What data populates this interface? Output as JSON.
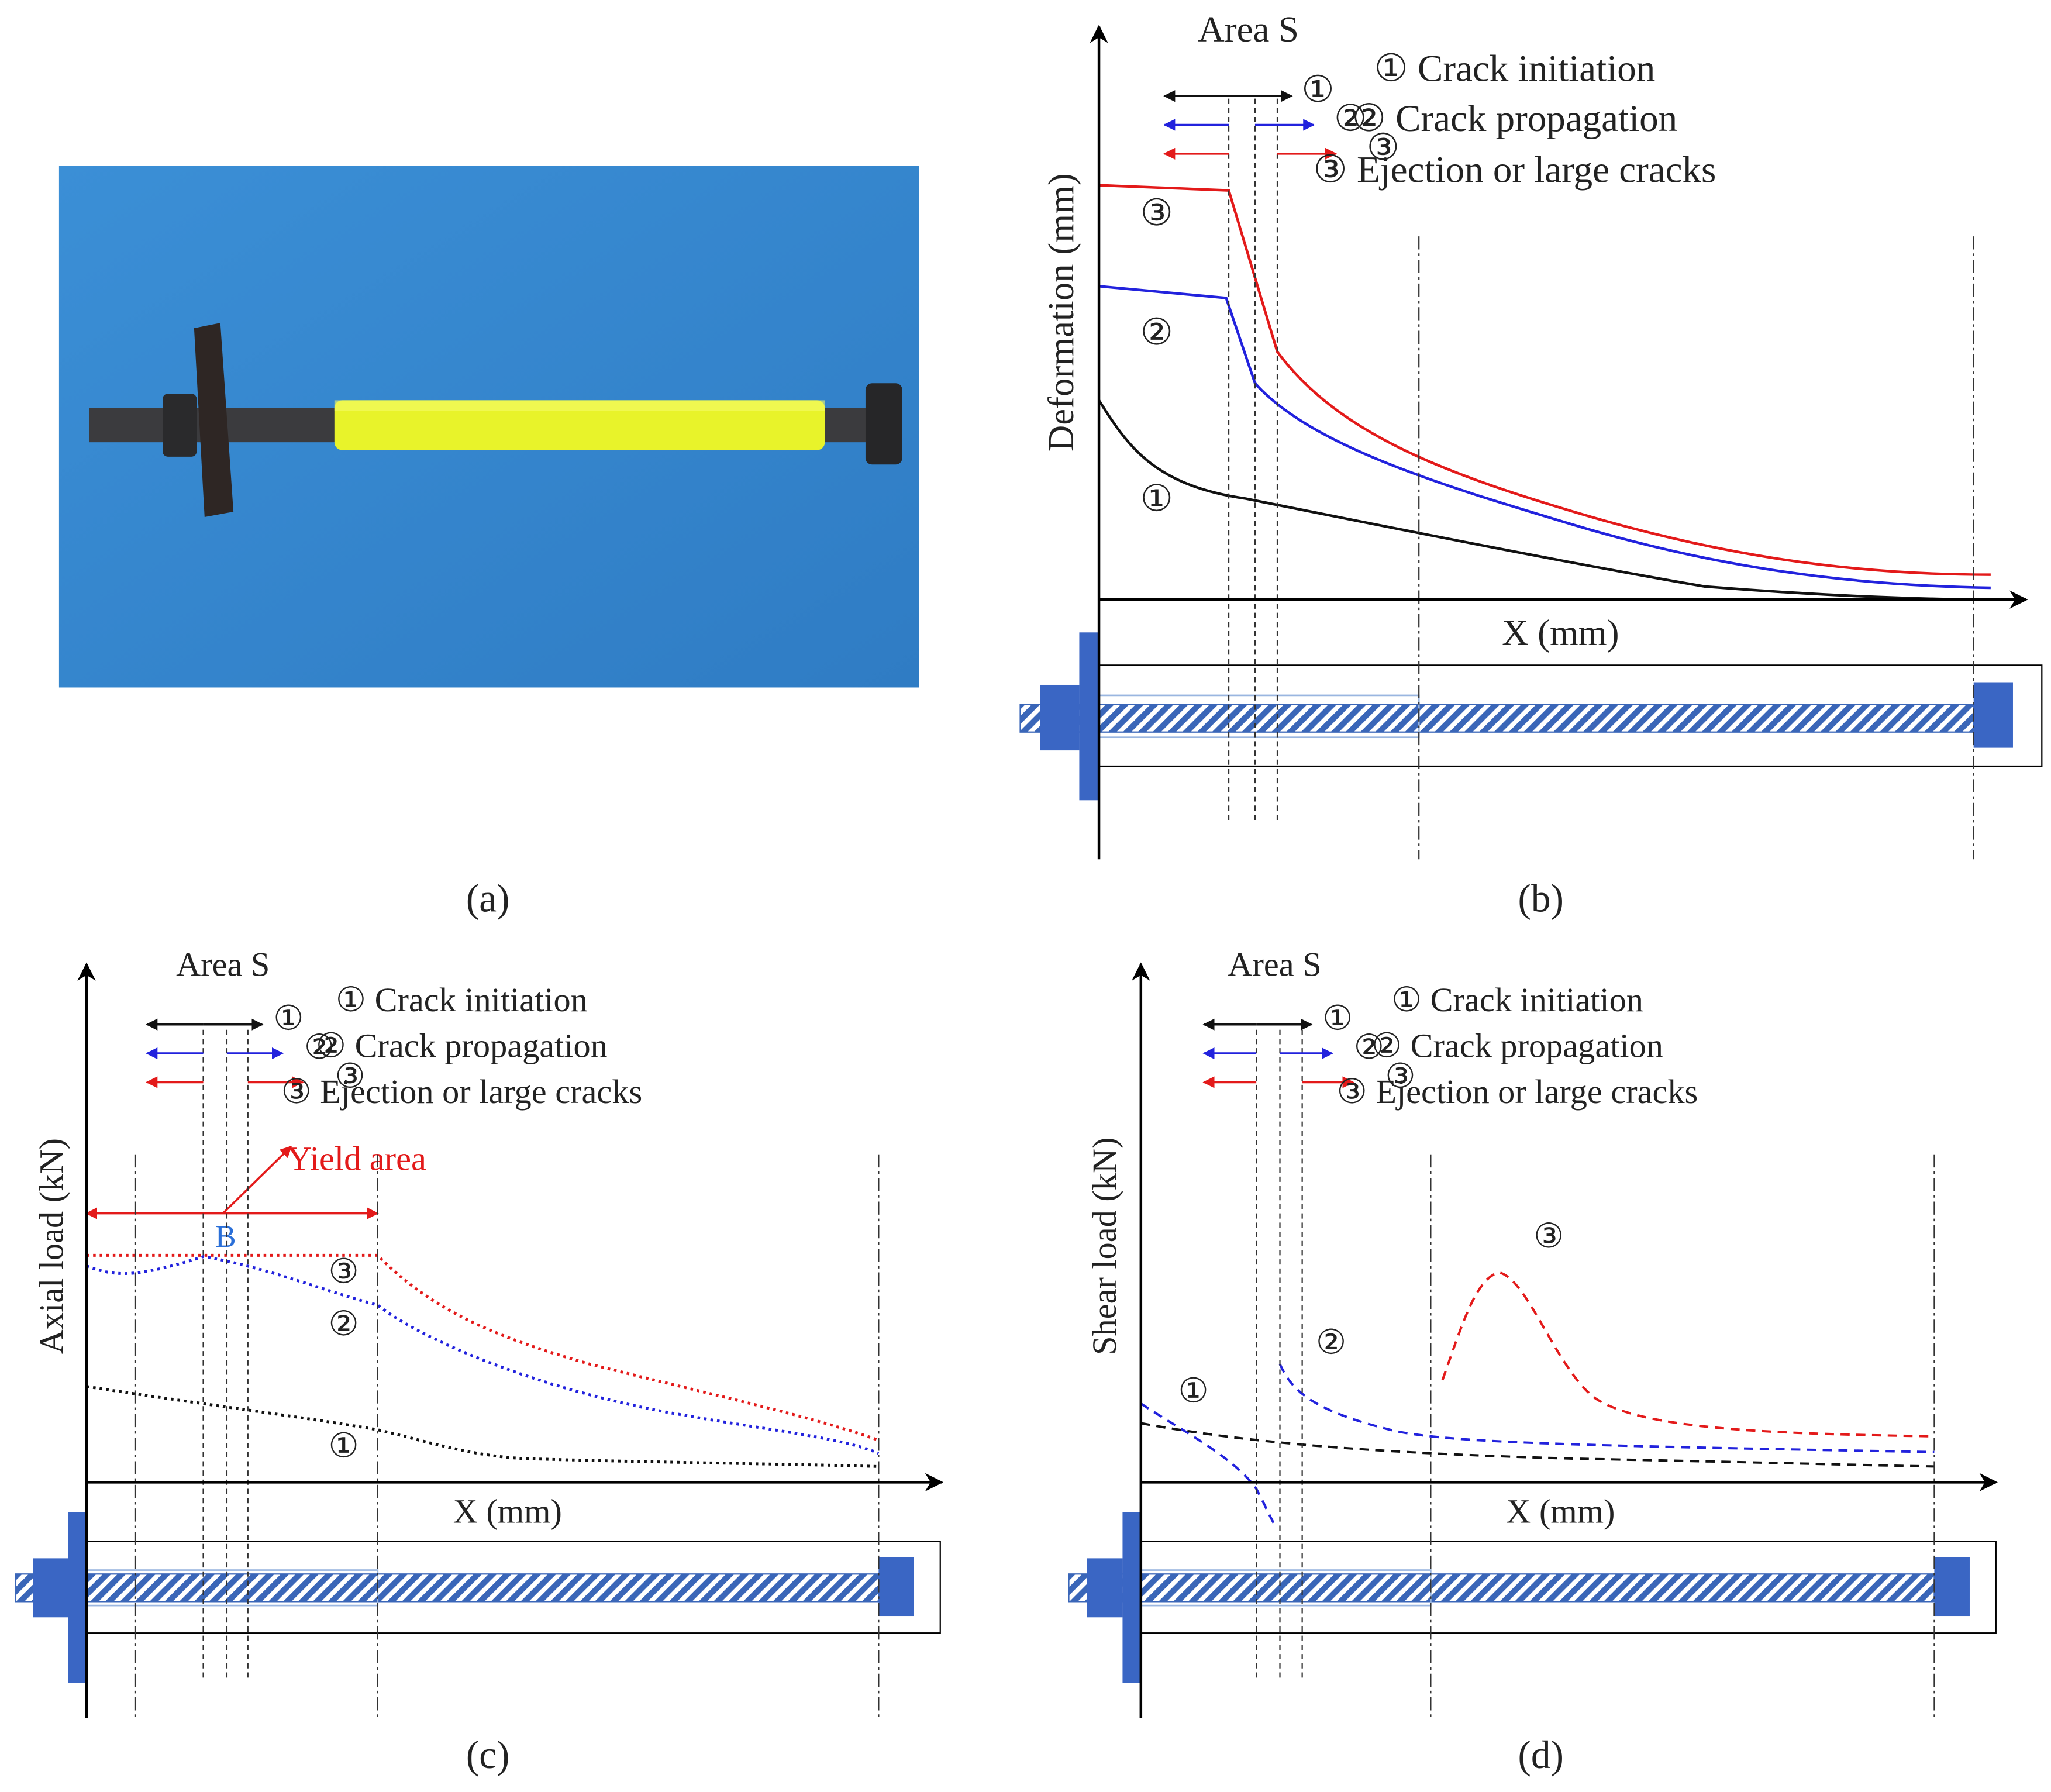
{
  "panels": {
    "a": {
      "caption": "(a)"
    },
    "b": {
      "area_label": "Area S",
      "arrow_markers": [
        "①",
        "②",
        "③"
      ],
      "legend": [
        "① Crack initiation",
        "② Crack propagation",
        "③ Ejection or large cracks"
      ],
      "curve_labels": [
        "③",
        "②",
        "①"
      ],
      "y_label": "Deformation (mm)",
      "x_label": "X (mm)",
      "caption": "(b)"
    },
    "c": {
      "area_label": "Area S",
      "arrow_markers": [
        "①",
        "②",
        "③"
      ],
      "legend": [
        "① Crack initiation",
        "② Crack propagation",
        "③ Ejection or large cracks"
      ],
      "curve_labels": [
        "③",
        "②",
        "①"
      ],
      "yield_label": "Yield area",
      "point_label": "B",
      "y_label": "Axial load (kN)",
      "x_label": "X (mm)",
      "caption": "(c)"
    },
    "d": {
      "area_label": "Area S",
      "arrow_markers": [
        "①",
        "②",
        "③"
      ],
      "legend": [
        "① Crack initiation",
        "② Crack propagation",
        "③ Ejection or large cracks"
      ],
      "curve_labels": [
        "③",
        "②",
        "①"
      ],
      "y_label": "Shear load (kN)",
      "x_label": "X (mm)",
      "caption": "(d)"
    }
  }
}
